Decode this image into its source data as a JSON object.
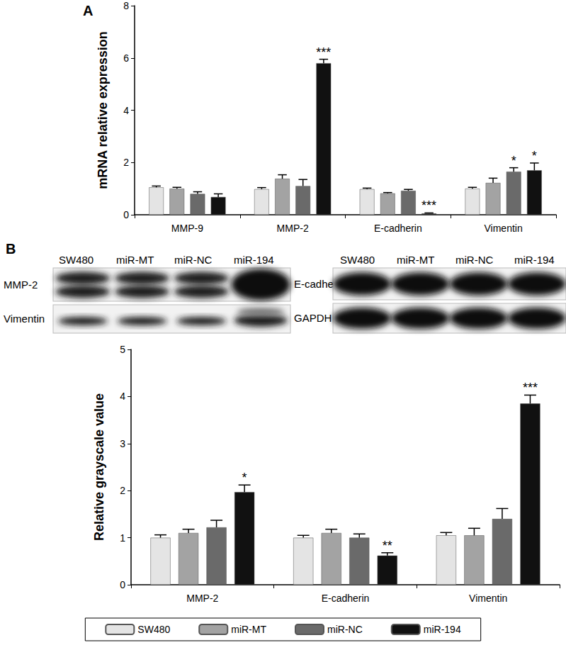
{
  "chart_data": [
    {
      "type": "bar",
      "title": "A",
      "categories": [
        "MMP-9",
        "MMP-2",
        "E-cadherin",
        "Vimentin"
      ],
      "y_label": "mRNA relative expression",
      "ylim": [
        0,
        8
      ],
      "yticks": [
        0,
        2,
        4,
        6,
        8
      ],
      "grid": false,
      "series": [
        {
          "name": "SW480",
          "color": "#e4e4e4",
          "values": [
            1.05,
            0.98,
            0.98,
            1.0
          ],
          "errors": [
            0.05,
            0.06,
            0.04,
            0.05
          ],
          "significance": [
            null,
            null,
            null,
            null
          ]
        },
        {
          "name": "miR-MT",
          "color": "#a3a3a3",
          "values": [
            1.0,
            1.38,
            0.82,
            1.22
          ],
          "errors": [
            0.05,
            0.15,
            0.03,
            0.18
          ],
          "significance": [
            null,
            null,
            null,
            null
          ]
        },
        {
          "name": "miR-NC",
          "color": "#6a6a6a",
          "values": [
            0.8,
            1.1,
            0.92,
            1.65
          ],
          "errors": [
            0.08,
            0.25,
            0.05,
            0.15
          ],
          "significance": [
            null,
            null,
            null,
            "*"
          ]
        },
        {
          "name": "miR-194",
          "color": "#111111",
          "values": [
            0.68,
            5.8,
            0.05,
            1.7
          ],
          "errors": [
            0.12,
            0.15,
            0.02,
            0.28
          ],
          "significance": [
            null,
            "***",
            "***",
            "*"
          ]
        }
      ]
    },
    {
      "type": "bar",
      "title": "B",
      "categories": [
        "MMP-2",
        "E-cadherin",
        "Vimentin"
      ],
      "y_label": "Relative grayscale value",
      "ylim": [
        0,
        5
      ],
      "yticks": [
        0,
        1,
        2,
        3,
        4,
        5
      ],
      "grid": false,
      "legend": "bottom",
      "series": [
        {
          "name": "SW480",
          "color": "#e4e4e4",
          "values": [
            1.0,
            1.0,
            1.05
          ],
          "errors": [
            0.06,
            0.05,
            0.06
          ],
          "significance": [
            null,
            null,
            null
          ]
        },
        {
          "name": "miR-MT",
          "color": "#a3a3a3",
          "values": [
            1.1,
            1.1,
            1.05
          ],
          "errors": [
            0.08,
            0.08,
            0.15
          ],
          "significance": [
            null,
            null,
            null
          ]
        },
        {
          "name": "miR-NC",
          "color": "#6a6a6a",
          "values": [
            1.22,
            1.0,
            1.4
          ],
          "errors": [
            0.15,
            0.08,
            0.22
          ],
          "significance": [
            null,
            null,
            null
          ]
        },
        {
          "name": "miR-194",
          "color": "#111111",
          "values": [
            1.97,
            0.62,
            3.85
          ],
          "errors": [
            0.15,
            0.06,
            0.18
          ],
          "significance": [
            "*",
            "**",
            "***"
          ]
        }
      ]
    }
  ],
  "blots": [
    {
      "lanes": [
        "SW480",
        "miR-MT",
        "miR-NC",
        "miR-194"
      ],
      "bands": [
        "MMP-2",
        "Vimentin"
      ]
    },
    {
      "lanes": [
        "SW480",
        "miR-MT",
        "miR-NC",
        "miR-194"
      ],
      "bands": [
        "E-cadherin",
        "GAPDH"
      ]
    }
  ]
}
